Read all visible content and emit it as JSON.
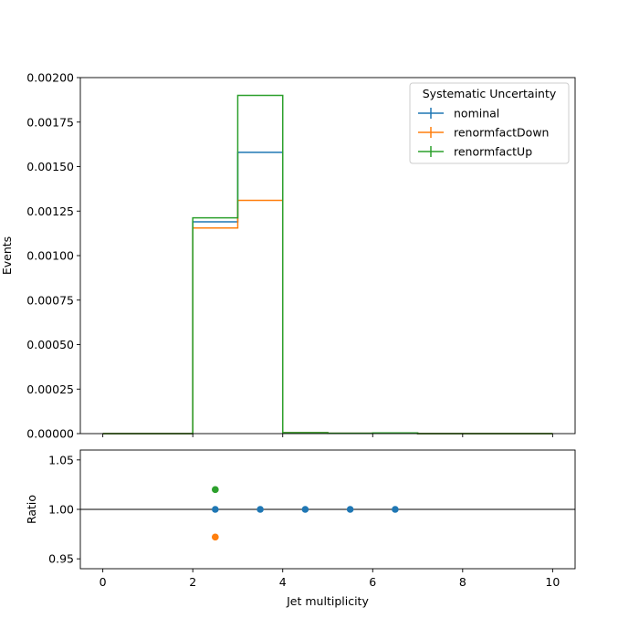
{
  "chart_data": [
    {
      "type": "line",
      "xlabel": "",
      "ylabel": "Events",
      "xlim": [
        -0.5,
        10.5
      ],
      "ylim": [
        0,
        0.002
      ],
      "yticks": [
        0.0,
        0.00025,
        0.0005,
        0.00075,
        0.001,
        0.00125,
        0.0015,
        0.00175,
        0.002
      ],
      "ytick_labels": [
        "0.00000",
        "0.00025",
        "0.00050",
        "0.00075",
        "0.00100",
        "0.00125",
        "0.00150",
        "0.00175",
        "0.00200"
      ],
      "xticks": [
        0,
        2,
        4,
        6,
        8,
        10
      ],
      "bin_edges": [
        0,
        1,
        2,
        3,
        4,
        5,
        6,
        7,
        8,
        9,
        10
      ],
      "legend": {
        "title": "Systematic Uncertainty",
        "placement": "top-right"
      },
      "series": [
        {
          "name": "nominal",
          "color": "#1f77b4",
          "values": [
            0,
            0,
            0.00119,
            0.00158,
            5e-06,
            2e-06,
            4e-06,
            0,
            0,
            0
          ]
        },
        {
          "name": "renormfactDown",
          "color": "#ff7f0e",
          "values": [
            0,
            0,
            0.001155,
            0.00131,
            5e-06,
            2e-06,
            4e-06,
            0,
            0,
            0
          ]
        },
        {
          "name": "renormfactUp",
          "color": "#2ca02c",
          "values": [
            0,
            0,
            0.001212,
            0.0019,
            5e-06,
            2e-06,
            4e-06,
            0,
            0,
            0
          ]
        }
      ]
    },
    {
      "type": "scatter",
      "xlabel": "Jet multiplicity",
      "ylabel": "Ratio",
      "xlim": [
        -0.5,
        10.5
      ],
      "ylim": [
        0.94,
        1.06
      ],
      "yticks": [
        0.95,
        1.0,
        1.05
      ],
      "ytick_labels": [
        "0.95",
        "1.00",
        "1.05"
      ],
      "xticks": [
        0,
        2,
        4,
        6,
        8,
        10
      ],
      "xtick_labels": [
        "0",
        "2",
        "4",
        "6",
        "8",
        "10"
      ],
      "reference_line": 1.0,
      "series": [
        {
          "name": "nominal",
          "color": "#1f77b4",
          "x": [
            2.5,
            3.5,
            4.5,
            5.5,
            6.5
          ],
          "y": [
            1.0,
            1.0,
            1.0,
            1.0,
            1.0
          ]
        },
        {
          "name": "renormfactDown",
          "color": "#ff7f0e",
          "x": [
            2.5
          ],
          "y": [
            0.972
          ]
        },
        {
          "name": "renormfactUp",
          "color": "#2ca02c",
          "x": [
            2.5
          ],
          "y": [
            1.02
          ]
        }
      ]
    }
  ]
}
